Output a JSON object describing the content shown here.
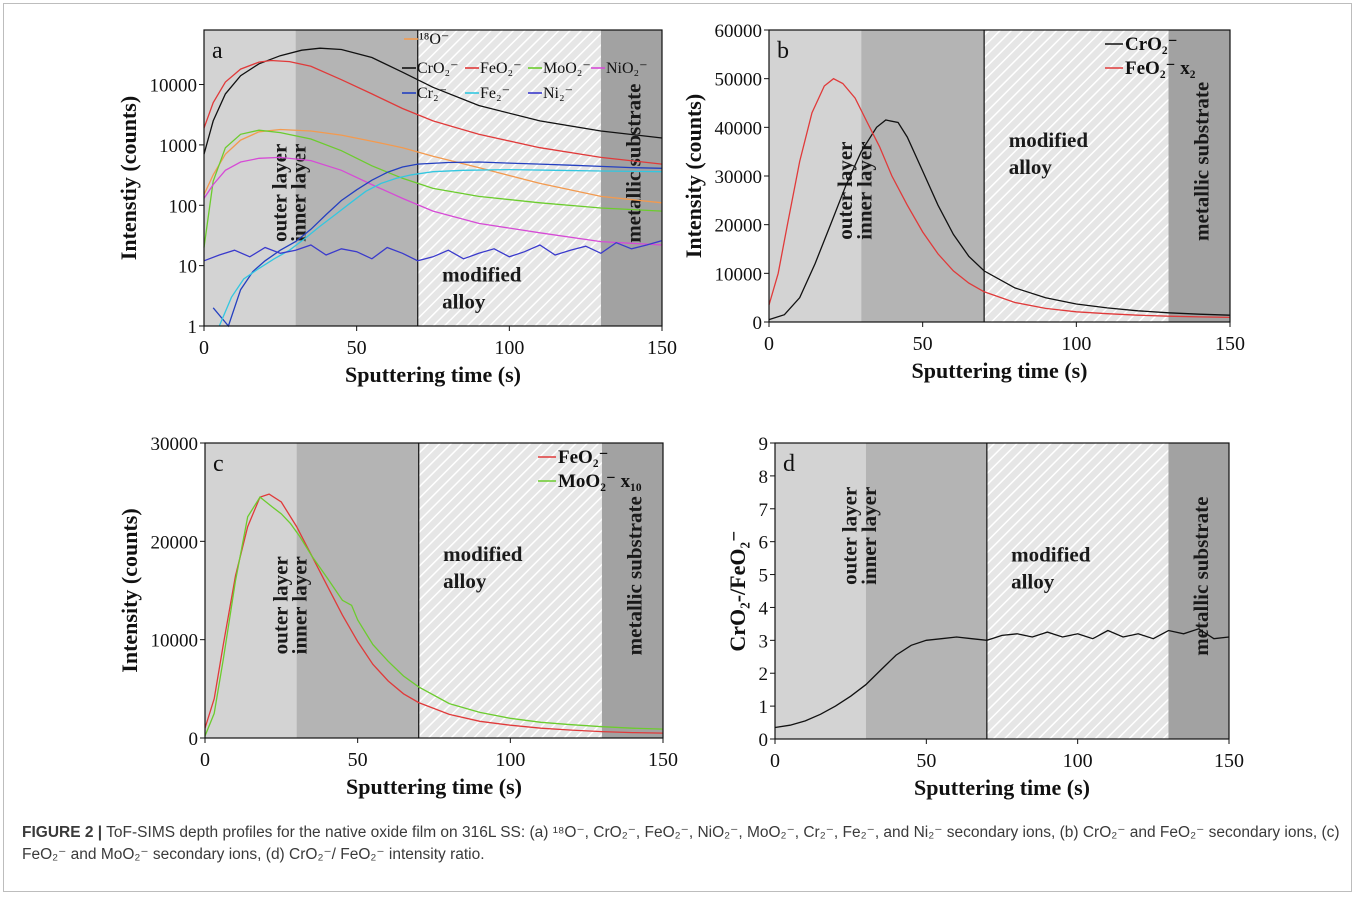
{
  "figure": {
    "caption_label": "FIGURE 2 |",
    "caption_text": "ToF-SIMS depth profiles for the native oxide film on 316L SS: (a) ¹⁸O⁻, CrO₂⁻, FeO₂⁻, NiO₂⁻, MoO₂⁻, Cr₂⁻, Fe₂⁻, and Ni₂⁻ secondary ions, (b) CrO₂⁻ and FeO₂⁻ secondary ions, (c) FeO₂⁻ and MoO₂⁻ secondary ions, (d) CrO₂⁻/ FeO₂⁻ intensity ratio."
  },
  "region_labels": {
    "outer": "outer layer",
    "inner": "inner layer",
    "modified_1": "modified",
    "modified_2": "alloy",
    "metallic": "metallic substrate"
  },
  "colors": {
    "outer": "#d3d3d3",
    "inner": "#b4b4b4",
    "modified_bg": "#e6e6e6",
    "metallic": "#a2a2a2"
  },
  "chart_data": [
    {
      "panel": "a",
      "type": "line",
      "xlabel": "Sputtering time (s)",
      "ylabel": "Intenstiy (counts)",
      "xlim": [
        0,
        150
      ],
      "ylim": [
        1,
        80000
      ],
      "yscale": "log",
      "xticks": [
        0,
        50,
        100,
        150
      ],
      "yticks": [
        1,
        10,
        100,
        1000,
        10000
      ],
      "regions": [
        [
          0,
          30
        ],
        [
          30,
          70
        ],
        [
          70,
          130
        ],
        [
          130,
          150
        ]
      ],
      "legend_position": "top-right",
      "series": [
        {
          "name": "18O-",
          "color": "#f39a4f",
          "x": [
            0,
            3,
            7,
            12,
            18,
            25,
            35,
            45,
            55,
            65,
            75,
            90,
            110,
            130,
            150
          ],
          "y": [
            150,
            320,
            700,
            1200,
            1650,
            1800,
            1700,
            1450,
            1150,
            900,
            650,
            420,
            230,
            140,
            110
          ]
        },
        {
          "name": "CrO2-",
          "color": "#111111",
          "x": [
            0,
            3,
            7,
            12,
            18,
            25,
            32,
            38,
            45,
            55,
            65,
            75,
            90,
            110,
            130,
            150
          ],
          "y": [
            700,
            2500,
            7000,
            14000,
            22000,
            30000,
            37000,
            40000,
            38000,
            28000,
            16000,
            9000,
            4500,
            2500,
            1700,
            1300
          ]
        },
        {
          "name": "FeO2-",
          "color": "#e03a3a",
          "x": [
            0,
            3,
            7,
            12,
            18,
            22,
            28,
            35,
            45,
            55,
            65,
            75,
            90,
            110,
            130,
            150
          ],
          "y": [
            1900,
            5000,
            11000,
            18000,
            23500,
            25000,
            24000,
            20000,
            12000,
            7000,
            4000,
            2500,
            1500,
            900,
            620,
            480
          ]
        },
        {
          "name": "MoO2-",
          "color": "#6ccc2e",
          "x": [
            0,
            3,
            7,
            12,
            18,
            25,
            35,
            45,
            55,
            65,
            75,
            90,
            110,
            130,
            150
          ],
          "y": [
            20,
            250,
            900,
            1500,
            1750,
            1600,
            1250,
            800,
            450,
            280,
            190,
            140,
            110,
            90,
            80
          ]
        },
        {
          "name": "NiO2-",
          "color": "#d64bd6",
          "x": [
            0,
            3,
            7,
            12,
            18,
            25,
            35,
            45,
            55,
            65,
            75,
            90,
            110,
            130,
            150
          ],
          "y": [
            130,
            220,
            380,
            520,
            600,
            620,
            550,
            380,
            220,
            130,
            80,
            50,
            35,
            25,
            22
          ]
        },
        {
          "name": "Cr2-",
          "color": "#2440c0",
          "x": [
            3,
            8,
            12,
            16,
            20,
            25,
            30,
            35,
            40,
            45,
            50,
            55,
            60,
            65,
            70,
            80,
            90,
            100,
            110,
            120,
            130,
            140,
            150
          ],
          "y": [
            2,
            1,
            4,
            8,
            12,
            18,
            25,
            40,
            70,
            120,
            180,
            260,
            350,
            430,
            480,
            510,
            520,
            500,
            480,
            460,
            440,
            420,
            410
          ]
        },
        {
          "name": "Fe2-",
          "color": "#33c7e0",
          "x": [
            5,
            9,
            13,
            18,
            23,
            28,
            33,
            38,
            43,
            48,
            53,
            58,
            63,
            68,
            75,
            85,
            100,
            115,
            130,
            150
          ],
          "y": [
            1,
            3,
            6,
            9,
            13,
            18,
            28,
            45,
            70,
            110,
            170,
            230,
            280,
            320,
            360,
            380,
            390,
            380,
            370,
            360
          ]
        },
        {
          "name": "Ni2-",
          "color": "#3a3acc",
          "x": [
            0,
            5,
            10,
            15,
            20,
            25,
            30,
            35,
            40,
            45,
            50,
            55,
            60,
            65,
            70,
            75,
            80,
            85,
            90,
            95,
            100,
            105,
            110,
            115,
            120,
            125,
            130,
            135,
            140,
            145,
            150
          ],
          "y": [
            12,
            15,
            18,
            14,
            20,
            16,
            18,
            22,
            15,
            19,
            17,
            13,
            20,
            16,
            12,
            14,
            18,
            13,
            16,
            19,
            14,
            17,
            22,
            15,
            18,
            21,
            16,
            24,
            19,
            22,
            26
          ]
        }
      ]
    },
    {
      "panel": "b",
      "type": "line",
      "xlabel": "Sputtering time (s)",
      "ylabel": "Intensity (counts)",
      "xlim": [
        0,
        150
      ],
      "ylim": [
        0,
        60000
      ],
      "xticks": [
        0,
        50,
        100,
        150
      ],
      "yticks": [
        0,
        10000,
        20000,
        30000,
        40000,
        50000,
        60000
      ],
      "regions": [
        [
          0,
          30
        ],
        [
          30,
          70
        ],
        [
          70,
          130
        ],
        [
          130,
          150
        ]
      ],
      "legend_position": "top-right",
      "series": [
        {
          "name": "CrO2-",
          "color": "#111111",
          "x": [
            0,
            5,
            10,
            15,
            20,
            25,
            30,
            35,
            38,
            42,
            45,
            50,
            55,
            60,
            65,
            70,
            80,
            90,
            100,
            110,
            120,
            130,
            140,
            150
          ],
          "y": [
            500,
            1500,
            5000,
            12000,
            20000,
            28000,
            35000,
            40000,
            41500,
            41000,
            38000,
            31000,
            24000,
            18000,
            13500,
            10500,
            7000,
            5000,
            3700,
            2900,
            2300,
            1900,
            1600,
            1400
          ]
        },
        {
          "name": "FeO2- x2",
          "color": "#e03a3a",
          "x": [
            0,
            3,
            6,
            10,
            14,
            18,
            21,
            24,
            28,
            32,
            36,
            40,
            45,
            50,
            55,
            60,
            65,
            70,
            80,
            90,
            100,
            110,
            120,
            130,
            140,
            150
          ],
          "y": [
            3500,
            10000,
            20000,
            33000,
            43000,
            48500,
            50000,
            49000,
            46000,
            41000,
            36000,
            30000,
            24000,
            18500,
            14000,
            10500,
            8000,
            6200,
            4000,
            2800,
            2100,
            1700,
            1400,
            1200,
            1050,
            950
          ]
        }
      ]
    },
    {
      "panel": "c",
      "type": "line",
      "xlabel": "Sputtering time (s)",
      "ylabel": "Intensity (counts)",
      "xlim": [
        0,
        150
      ],
      "ylim": [
        0,
        30000
      ],
      "xticks": [
        0,
        50,
        100,
        150
      ],
      "yticks": [
        0,
        10000,
        20000,
        30000
      ],
      "regions": [
        [
          0,
          30
        ],
        [
          30,
          70
        ],
        [
          70,
          130
        ],
        [
          130,
          150
        ]
      ],
      "legend_position": "top-right",
      "series": [
        {
          "name": "FeO2-",
          "color": "#e03a3a",
          "x": [
            0,
            3,
            6,
            10,
            14,
            18,
            21,
            25,
            30,
            35,
            40,
            45,
            50,
            55,
            60,
            65,
            70,
            80,
            90,
            100,
            110,
            120,
            130,
            140,
            150
          ],
          "y": [
            1000,
            4000,
            9500,
            16500,
            21500,
            24500,
            24800,
            24000,
            21500,
            18500,
            15500,
            12500,
            9800,
            7500,
            5800,
            4500,
            3600,
            2400,
            1700,
            1300,
            1000,
            800,
            650,
            550,
            500
          ]
        },
        {
          "name": "MoO2- x10",
          "color": "#6ccc2e",
          "x": [
            0,
            3,
            6,
            10,
            14,
            18,
            20,
            22,
            25,
            28,
            31,
            35,
            40,
            45,
            48,
            50,
            55,
            60,
            65,
            70,
            80,
            90,
            100,
            110,
            120,
            130,
            140,
            150
          ],
          "y": [
            200,
            2500,
            8000,
            16000,
            22500,
            24500,
            24000,
            23500,
            22800,
            21800,
            20500,
            18500,
            16300,
            14000,
            13500,
            12000,
            9500,
            7800,
            6300,
            5200,
            3500,
            2600,
            2000,
            1600,
            1350,
            1150,
            1000,
            900
          ]
        }
      ]
    },
    {
      "panel": "d",
      "type": "line",
      "xlabel": "Sputtering time (s)",
      "ylabel": "CrO2-/FeO2-",
      "xlim": [
        0,
        150
      ],
      "ylim": [
        0,
        9
      ],
      "xticks": [
        0,
        50,
        100,
        150
      ],
      "yticks": [
        0,
        1,
        2,
        3,
        4,
        5,
        6,
        7,
        8,
        9
      ],
      "regions": [
        [
          0,
          30
        ],
        [
          30,
          70
        ],
        [
          70,
          130
        ],
        [
          130,
          150
        ]
      ],
      "series": [
        {
          "name": "CrO2-/FeO2-",
          "color": "#111111",
          "x": [
            0,
            5,
            10,
            15,
            20,
            25,
            30,
            35,
            40,
            45,
            50,
            55,
            60,
            65,
            70,
            75,
            80,
            85,
            90,
            95,
            100,
            105,
            110,
            115,
            120,
            125,
            130,
            135,
            140,
            145,
            150
          ],
          "y": [
            0.35,
            0.42,
            0.55,
            0.75,
            1.0,
            1.3,
            1.65,
            2.1,
            2.55,
            2.85,
            3.0,
            3.05,
            3.1,
            3.05,
            3.0,
            3.15,
            3.2,
            3.1,
            3.25,
            3.1,
            3.2,
            3.05,
            3.3,
            3.1,
            3.2,
            3.05,
            3.3,
            3.2,
            3.35,
            3.05,
            3.1
          ]
        }
      ]
    }
  ]
}
